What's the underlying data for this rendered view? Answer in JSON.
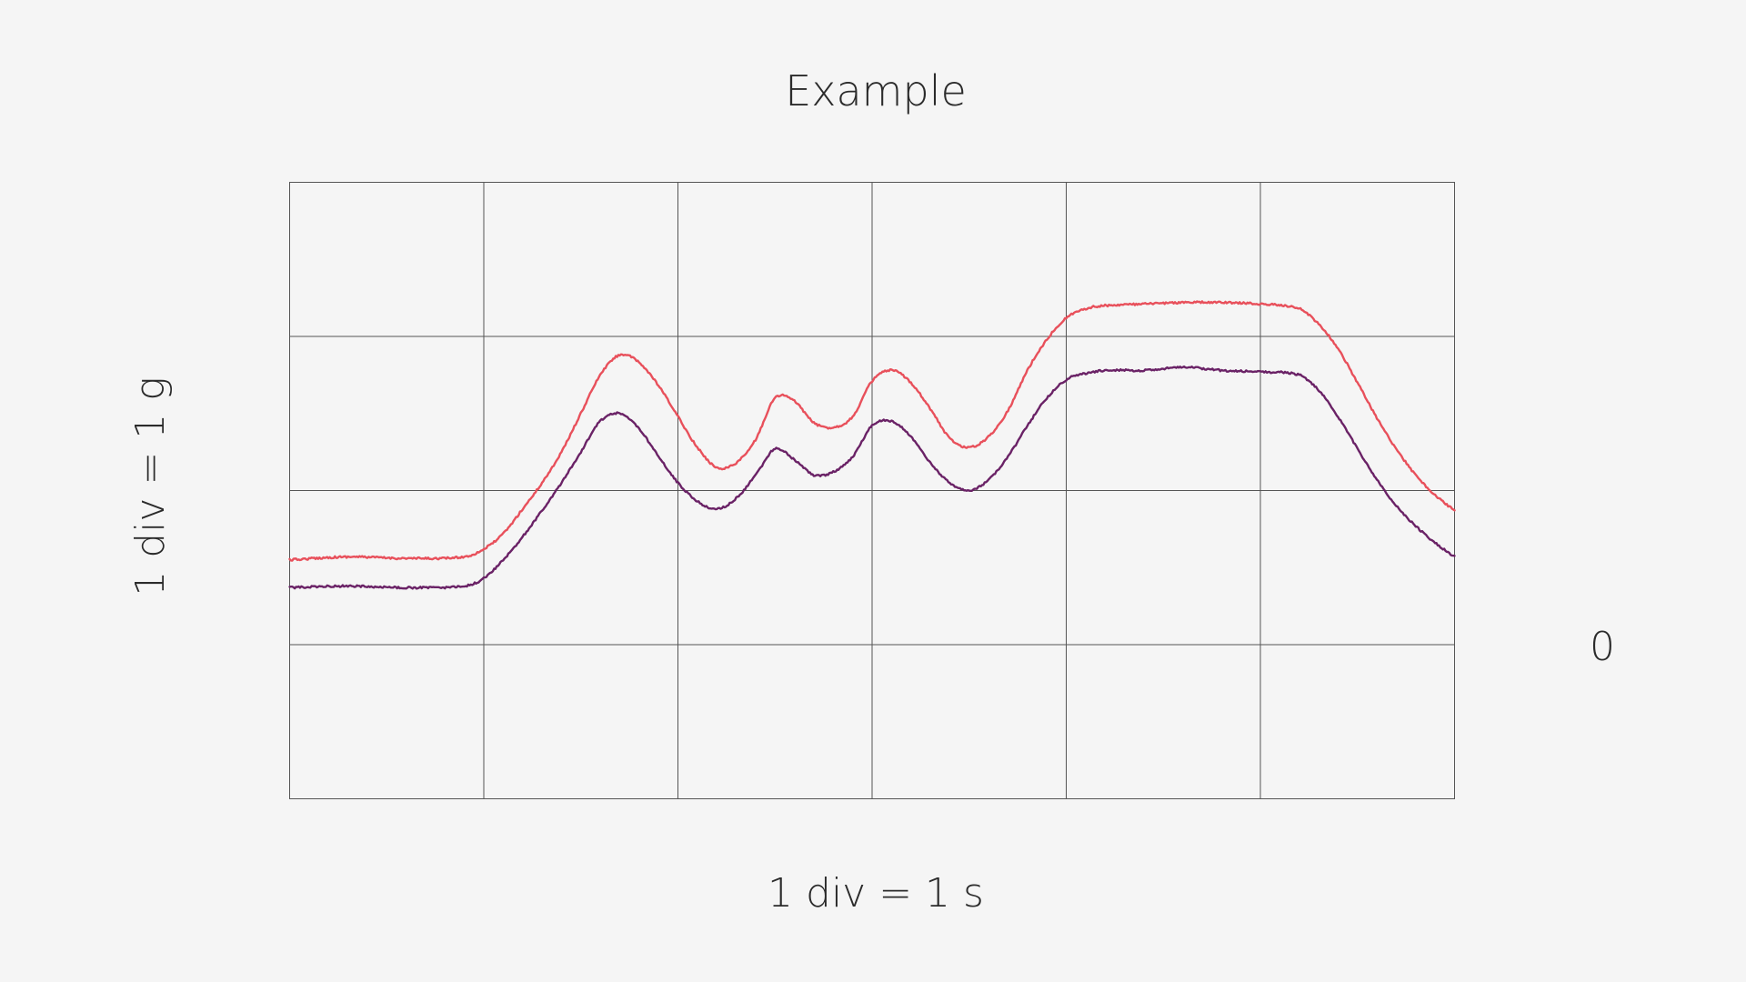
{
  "chart_data": {
    "type": "line",
    "title": "Example",
    "xlabel": "1 div = 1 s",
    "ylabel": "1 div = 1 g",
    "zero_marker": "0",
    "grid": true,
    "xlim": [
      0,
      6
    ],
    "ylim": [
      -1,
      3
    ],
    "x_divisions": 6,
    "y_divisions": 4,
    "series": [
      {
        "color": "#e8505b",
        "x": [
          0,
          0.3,
          0.6,
          0.9,
          1.0,
          1.1,
          1.2,
          1.3,
          1.4,
          1.5,
          1.6,
          1.7,
          1.8,
          1.9,
          2.0,
          2.1,
          2.2,
          2.3,
          2.4,
          2.5,
          2.6,
          2.7,
          2.8,
          2.9,
          3.0,
          3.1,
          3.2,
          3.3,
          3.4,
          3.5,
          3.6,
          3.7,
          3.8,
          3.9,
          4.0,
          4.1,
          4.2,
          4.4,
          4.6,
          4.8,
          5.0,
          5.2,
          5.3,
          5.4,
          5.5,
          5.6,
          5.7,
          5.8,
          5.9,
          6.0
        ],
        "y": [
          0.55,
          0.57,
          0.56,
          0.57,
          0.62,
          0.72,
          0.88,
          1.05,
          1.25,
          1.5,
          1.75,
          1.88,
          1.83,
          1.68,
          1.48,
          1.28,
          1.15,
          1.18,
          1.33,
          1.6,
          1.58,
          1.44,
          1.41,
          1.48,
          1.71,
          1.78,
          1.7,
          1.53,
          1.34,
          1.28,
          1.35,
          1.52,
          1.78,
          1.98,
          2.12,
          2.18,
          2.2,
          2.21,
          2.22,
          2.22,
          2.21,
          2.18,
          2.08,
          1.92,
          1.7,
          1.47,
          1.27,
          1.1,
          0.97,
          0.87
        ]
      },
      {
        "color": "#6a2266",
        "x": [
          0,
          0.3,
          0.6,
          0.9,
          1.0,
          1.1,
          1.2,
          1.3,
          1.4,
          1.5,
          1.6,
          1.7,
          1.8,
          1.9,
          2.0,
          2.1,
          2.2,
          2.3,
          2.4,
          2.5,
          2.6,
          2.7,
          2.8,
          2.9,
          3.0,
          3.1,
          3.2,
          3.3,
          3.4,
          3.5,
          3.6,
          3.7,
          3.8,
          3.9,
          4.0,
          4.1,
          4.2,
          4.4,
          4.6,
          4.8,
          5.0,
          5.2,
          5.3,
          5.4,
          5.5,
          5.6,
          5.7,
          5.8,
          5.9,
          6.0
        ],
        "y": [
          0.37,
          0.38,
          0.37,
          0.38,
          0.43,
          0.55,
          0.7,
          0.87,
          1.05,
          1.25,
          1.45,
          1.5,
          1.4,
          1.22,
          1.05,
          0.93,
          0.88,
          0.95,
          1.1,
          1.27,
          1.2,
          1.1,
          1.12,
          1.22,
          1.42,
          1.45,
          1.35,
          1.18,
          1.05,
          1.0,
          1.07,
          1.22,
          1.42,
          1.6,
          1.72,
          1.76,
          1.78,
          1.78,
          1.8,
          1.78,
          1.77,
          1.75,
          1.65,
          1.48,
          1.27,
          1.07,
          0.9,
          0.77,
          0.66,
          0.57
        ]
      }
    ]
  }
}
